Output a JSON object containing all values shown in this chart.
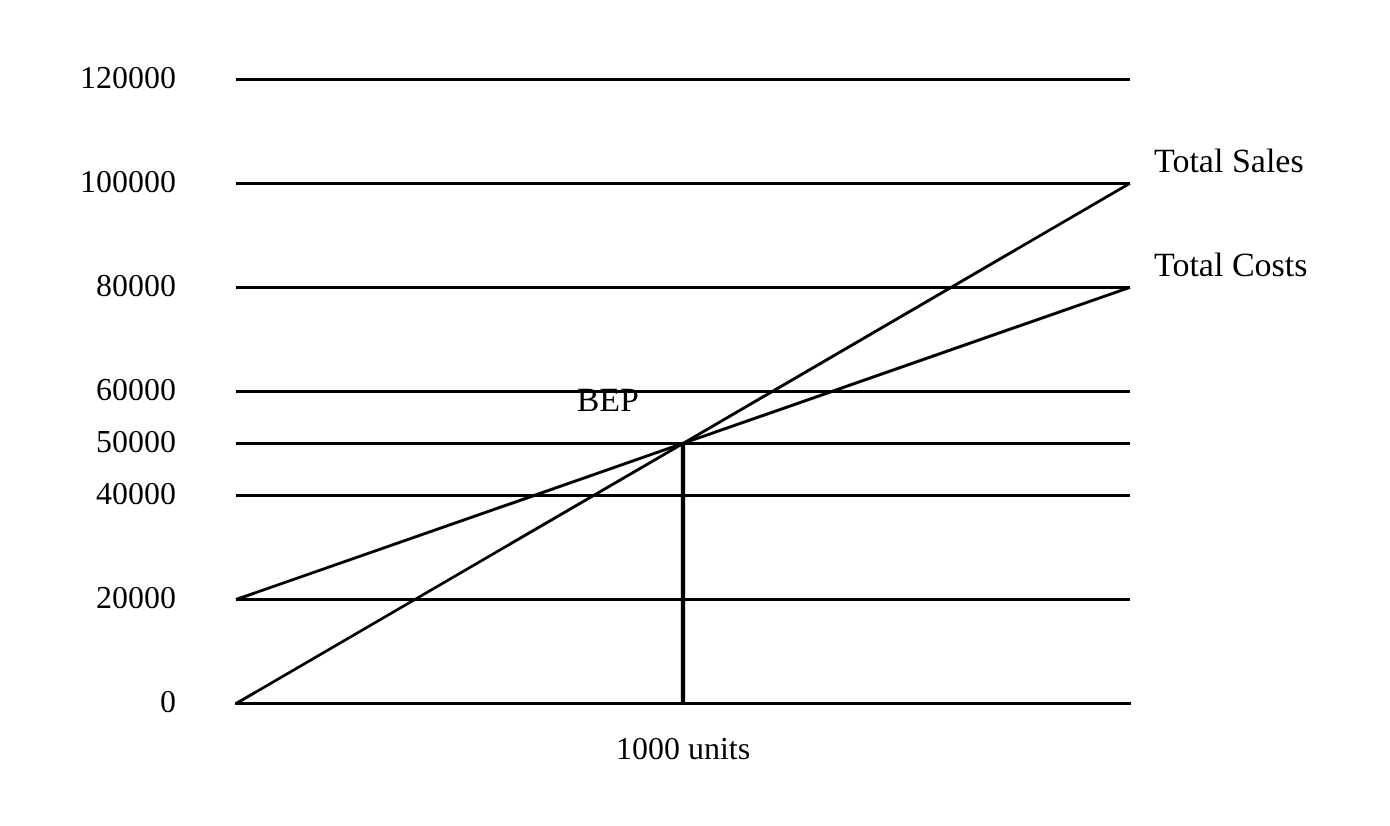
{
  "chart_data": {
    "type": "line",
    "categories": [
      null,
      "1000 units",
      null
    ],
    "ylim": [
      0,
      120000
    ],
    "yticks": [
      0,
      20000,
      40000,
      50000,
      60000,
      80000,
      100000,
      120000
    ],
    "grid": "y",
    "legend": false,
    "marker": "none",
    "line_style": "solid",
    "series": [
      {
        "name": "Total Sales",
        "color": "#000000",
        "values": [
          0,
          50000,
          100000
        ]
      },
      {
        "name": "Total Costs",
        "color": "#000000",
        "values": [
          20000,
          50000,
          80000
        ]
      },
      {
        "type": "bar",
        "color": "#000000",
        "values": [
          null,
          50000,
          null
        ]
      }
    ],
    "annotations": [
      {
        "text": "BEP",
        "x": "1000 units",
        "y": 50000
      }
    ]
  }
}
